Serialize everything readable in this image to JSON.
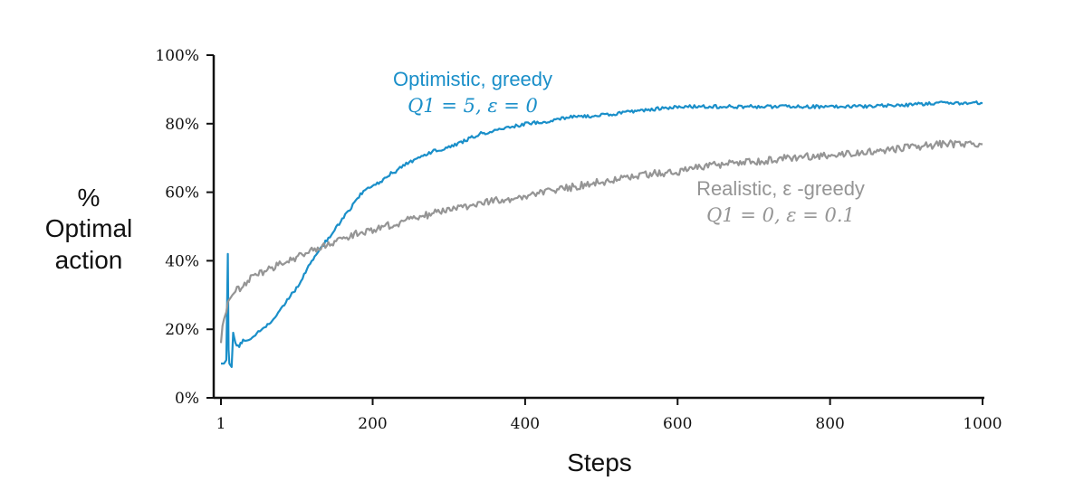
{
  "chart_data": {
    "type": "line",
    "xlabel": "Steps",
    "ylabel_lines": [
      "%",
      "Optimal",
      "action"
    ],
    "xlim": [
      1,
      1000
    ],
    "ylim": [
      0,
      100
    ],
    "x_ticks": [
      {
        "value": 1,
        "label": "1"
      },
      {
        "value": 200,
        "label": "200"
      },
      {
        "value": 400,
        "label": "400"
      },
      {
        "value": 600,
        "label": "600"
      },
      {
        "value": 800,
        "label": "800"
      },
      {
        "value": 1000,
        "label": "1000"
      }
    ],
    "y_ticks": [
      {
        "value": 0,
        "label": "0%"
      },
      {
        "value": 20,
        "label": "20%"
      },
      {
        "value": 40,
        "label": "40%"
      },
      {
        "value": 60,
        "label": "60%"
      },
      {
        "value": 80,
        "label": "80%"
      },
      {
        "value": 100,
        "label": "100%"
      }
    ],
    "grid": false,
    "legend": "inline-labels",
    "series": [
      {
        "name": "Optimistic, greedy",
        "params": "Q1 = 5,  ε = 0",
        "color": "#1a8fc9",
        "x": [
          1,
          5,
          8,
          10,
          11,
          12,
          15,
          17,
          20,
          25,
          30,
          40,
          50,
          60,
          70,
          80,
          90,
          100,
          110,
          120,
          130,
          140,
          150,
          160,
          170,
          180,
          190,
          200,
          210,
          220,
          230,
          240,
          250,
          260,
          280,
          300,
          320,
          340,
          360,
          380,
          400,
          420,
          440,
          460,
          480,
          500,
          520,
          540,
          560,
          580,
          600,
          650,
          700,
          750,
          800,
          850,
          900,
          950,
          1000
        ],
        "y": [
          10,
          10,
          11,
          42,
          14,
          10,
          9,
          19,
          16,
          15,
          17,
          17,
          19,
          21,
          23,
          26,
          29,
          32,
          36,
          40,
          43,
          46,
          49,
          52,
          55,
          58,
          61,
          62,
          63,
          65,
          66,
          68,
          69,
          70,
          72,
          73,
          75,
          77,
          78,
          79,
          80,
          80.5,
          81,
          82,
          82,
          82.5,
          83,
          83.5,
          84,
          84.5,
          85,
          85,
          85,
          85,
          85,
          85,
          85.5,
          86,
          86
        ]
      },
      {
        "name": "Realistic, ε -greedy",
        "params": "Q1 = 0,  ε = 0.1",
        "color": "#959595",
        "x": [
          1,
          3,
          5,
          8,
          10,
          13,
          16,
          20,
          30,
          40,
          50,
          60,
          70,
          80,
          90,
          100,
          120,
          140,
          160,
          180,
          200,
          250,
          300,
          350,
          400,
          450,
          500,
          550,
          600,
          650,
          700,
          750,
          800,
          850,
          900,
          950,
          1000
        ],
        "y": [
          16,
          21,
          23,
          25,
          28,
          29,
          30,
          31,
          33,
          35,
          36,
          37,
          38,
          39,
          40,
          41,
          43,
          45,
          46,
          48,
          49,
          52,
          55,
          57,
          59,
          61,
          63,
          65,
          66,
          68,
          69,
          70,
          71,
          72,
          73,
          74,
          74
        ]
      }
    ]
  }
}
